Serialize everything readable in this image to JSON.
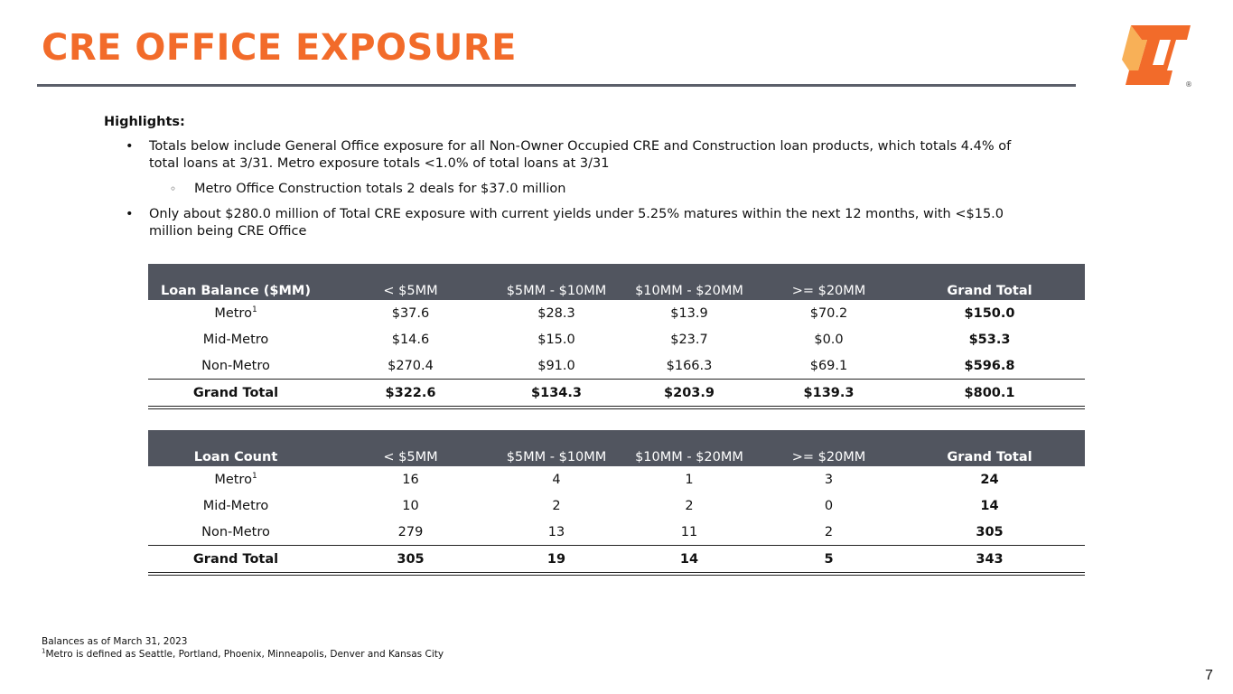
{
  "title": "CRE OFFICE EXPOSURE",
  "logo": {
    "registered_mark": "®",
    "color": "#f26b2a"
  },
  "highlights": {
    "heading": "Highlights:",
    "bullet1": "Totals below include General Office exposure for all Non-Owner Occupied CRE and Construction loan products, which totals 4.4% of total loans at 3/31.  Metro exposure totals <1.0% of total loans at 3/31",
    "sub_bullet1": "Metro Office Construction totals 2 deals for $37.0 million",
    "bullet2": "Only about $280.0 million of Total CRE exposure with current yields under 5.25% matures within the next 12 months, with <$15.0 million being CRE Office",
    "bullet_glyph": "•",
    "sub_bullet_glyph": "◦"
  },
  "footnote_marker": "1",
  "balance_table": {
    "headers": [
      "Loan Balance ($MM)",
      "< $5MM",
      "$5MM - $10MM",
      "$10MM - $20MM",
      ">= $20MM",
      "Grand Total"
    ],
    "rows": [
      [
        "Metro",
        "$37.6",
        "$28.3",
        "$13.9",
        "$70.2",
        "$150.0"
      ],
      [
        "Mid-Metro",
        "$14.6",
        "$15.0",
        "$23.7",
        "$0.0",
        "$53.3"
      ],
      [
        "Non-Metro",
        "$270.4",
        "$91.0",
        "$166.3",
        "$69.1",
        "$596.8"
      ]
    ],
    "total": [
      "Grand Total",
      "$322.6",
      "$134.3",
      "$203.9",
      "$139.3",
      "$800.1"
    ]
  },
  "count_table": {
    "headers": [
      "Loan Count",
      "< $5MM",
      "$5MM - $10MM",
      "$10MM - $20MM",
      ">= $20MM",
      "Grand Total"
    ],
    "rows": [
      [
        "Metro",
        "16",
        "4",
        "1",
        "3",
        "24"
      ],
      [
        "Mid-Metro",
        "10",
        "2",
        "2",
        "0",
        "14"
      ],
      [
        "Non-Metro",
        "279",
        "13",
        "11",
        "2",
        "305"
      ]
    ],
    "total": [
      "Grand Total",
      "305",
      "19",
      "14",
      "5",
      "343"
    ]
  },
  "footnotes": {
    "line1": "Balances as of March 31, 2023",
    "line2": "Metro is defined as Seattle, Portland, Phoenix, Minneapolis, Denver and Kansas City"
  },
  "page_number": "7"
}
